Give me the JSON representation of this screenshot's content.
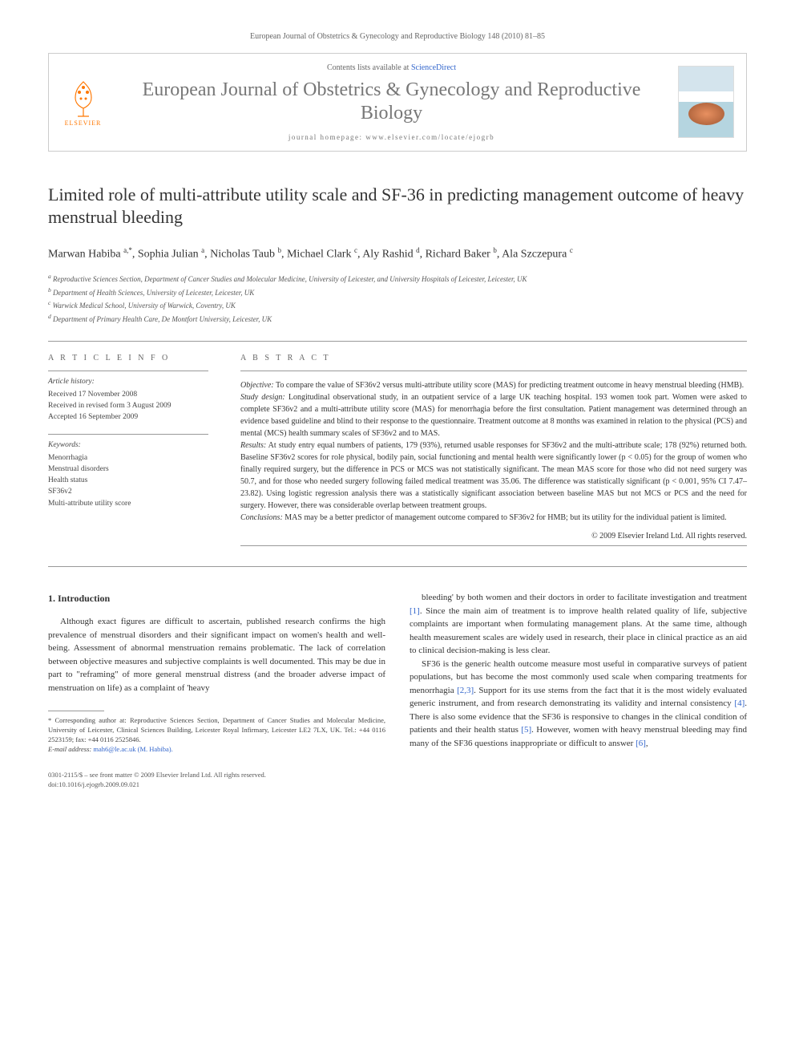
{
  "header": {
    "running_head": "European Journal of Obstetrics & Gynecology and Reproductive Biology 148 (2010) 81–85"
  },
  "masthead": {
    "publisher": "ELSEVIER",
    "contents_prefix": "Contents lists available at ",
    "contents_link": "ScienceDirect",
    "journal_name": "European Journal of Obstetrics & Gynecology and Reproductive Biology",
    "homepage_label": "journal homepage: www.elsevier.com/locate/ejogrb"
  },
  "article": {
    "title": "Limited role of multi-attribute utility scale and SF-36 in predicting management outcome of heavy menstrual bleeding",
    "authors_html": "Marwan Habiba <sup>a,*</sup>, Sophia Julian <sup>a</sup>, Nicholas Taub <sup>b</sup>, Michael Clark <sup>c</sup>, Aly Rashid <sup>d</sup>, Richard Baker <sup>b</sup>, Ala Szczepura <sup>c</sup>",
    "affiliations": [
      "a Reproductive Sciences Section, Department of Cancer Studies and Molecular Medicine, University of Leicester, and University Hospitals of Leicester, Leicester, UK",
      "b Department of Health Sciences, University of Leicester, Leicester, UK",
      "c Warwick Medical School, University of Warwick, Coventry, UK",
      "d Department of Primary Health Care, De Montfort University, Leicester, UK"
    ]
  },
  "article_info": {
    "heading": "A R T I C L E   I N F O",
    "history_label": "Article history:",
    "history": [
      "Received 17 November 2008",
      "Received in revised form 3 August 2009",
      "Accepted 16 September 2009"
    ],
    "keywords_label": "Keywords:",
    "keywords": [
      "Menorrhagia",
      "Menstrual disorders",
      "Health status",
      "SF36v2",
      "Multi-attribute utility score"
    ]
  },
  "abstract": {
    "heading": "A B S T R A C T",
    "objective_label": "Objective:",
    "objective": " To compare the value of SF36v2 versus multi-attribute utility score (MAS) for predicting treatment outcome in heavy menstrual bleeding (HMB).",
    "study_label": "Study design:",
    "study": " Longitudinal observational study, in an outpatient service of a large UK teaching hospital. 193 women took part. Women were asked to complete SF36v2 and a multi-attribute utility score (MAS) for menorrhagia before the first consultation. Patient management was determined through an evidence based guideline and blind to their response to the questionnaire. Treatment outcome at 8 months was examined in relation to the physical (PCS) and mental (MCS) health summary scales of SF36v2 and to MAS.",
    "results_label": "Results:",
    "results": " At study entry equal numbers of patients, 179 (93%), returned usable responses for SF36v2 and the multi-attribute scale; 178 (92%) returned both. Baseline SF36v2 scores for role physical, bodily pain, social functioning and mental health were significantly lower (p < 0.05) for the group of women who finally required surgery, but the difference in PCS or MCS was not statistically significant. The mean MAS score for those who did not need surgery was 50.7, and for those who needed surgery following failed medical treatment was 35.06. The difference was statistically significant (p < 0.001, 95% CI 7.47–23.82). Using logistic regression analysis there was a statistically significant association between baseline MAS but not MCS or PCS and the need for surgery. However, there was considerable overlap between treatment groups.",
    "conclusions_label": "Conclusions:",
    "conclusions": " MAS may be a better predictor of management outcome compared to SF36v2 for HMB; but its utility for the individual patient is limited.",
    "copyright": "© 2009 Elsevier Ireland Ltd. All rights reserved."
  },
  "body": {
    "section_heading": "1. Introduction",
    "col1_p1": "Although exact figures are difficult to ascertain, published research confirms the high prevalence of menstrual disorders and their significant impact on women's health and well-being. Assessment of abnormal menstruation remains problematic. The lack of correlation between objective measures and subjective complaints is well documented. This may be due in part to \"reframing\" of more general menstrual distress (and the broader adverse impact of menstruation on life) as a complaint of 'heavy",
    "col2_p1": "bleeding' by both women and their doctors in order to facilitate investigation and treatment [1]. Since the main aim of treatment is to improve health related quality of life, subjective complaints are important when formulating management plans. At the same time, although health measurement scales are widely used in research, their place in clinical practice as an aid to clinical decision-making is less clear.",
    "col2_p2": "SF36 is the generic health outcome measure most useful in comparative surveys of patient populations, but has become the most commonly used scale when comparing treatments for menorrhagia [2,3]. Support for its use stems from the fact that it is the most widely evaluated generic instrument, and from research demonstrating its validity and internal consistency [4]. There is also some evidence that the SF36 is responsive to changes in the clinical condition of patients and their health status [5]. However, women with heavy menstrual bleeding may find many of the SF36 questions inappropriate or difficult to answer [6],"
  },
  "footnote": {
    "corresponding": "* Corresponding author at: Reproductive Sciences Section, Department of Cancer Studies and Molecular Medicine, University of Leicester, Clinical Sciences Building, Leicester Royal Infirmary, Leicester LE2 7LX, UK. Tel.: +44 0116 2523159; fax: +44 0116 2525846.",
    "email_label": "E-mail address:",
    "email": " mah6@le.ac.uk (M. Habiba)."
  },
  "footer": {
    "issn": "0301-2115/$ – see front matter © 2009 Elsevier Ireland Ltd. All rights reserved.",
    "doi": "doi:10.1016/j.ejogrb.2009.09.021"
  }
}
